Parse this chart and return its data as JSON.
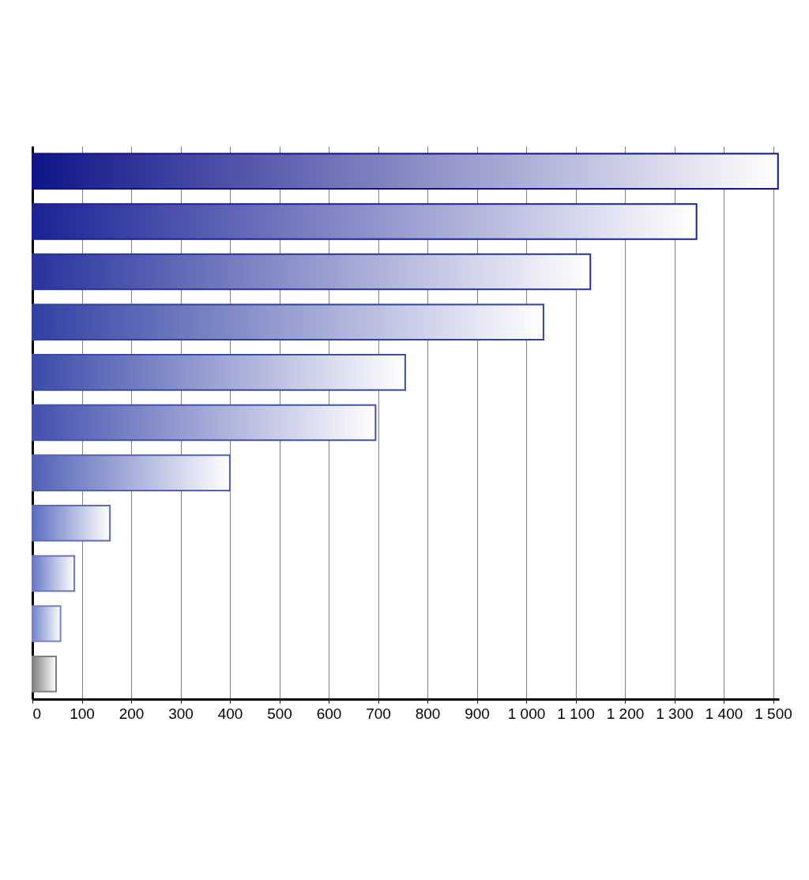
{
  "chart_data": {
    "type": "bar",
    "orientation": "horizontal",
    "categories": [
      null,
      null,
      null,
      null,
      null,
      null,
      null,
      null,
      null,
      null,
      null
    ],
    "values": [
      1510,
      1345,
      1130,
      1035,
      755,
      695,
      400,
      157,
      85,
      57,
      48
    ],
    "colors": [
      "#0f1488",
      "#1a2295",
      "#28339c",
      "#3140a3",
      "#3b4aa8",
      "#4350ac",
      "#5060b5",
      "#5a6cbd",
      "#6677c4",
      "#7383c9",
      "#808080"
    ],
    "xlim": [
      0,
      1512
    ],
    "xticks": [
      0,
      100,
      200,
      300,
      400,
      500,
      600,
      700,
      800,
      900,
      {
        "value": 1000,
        "label": "1 000"
      },
      {
        "value": 1100,
        "label": "1 100"
      },
      {
        "value": 1200,
        "label": "1 200"
      },
      {
        "value": 1300,
        "label": "1 300"
      },
      {
        "value": 1400,
        "label": "1 400"
      },
      {
        "value": 1500,
        "label": "1 500"
      }
    ],
    "grid": "x",
    "tick_labels": "x"
  }
}
